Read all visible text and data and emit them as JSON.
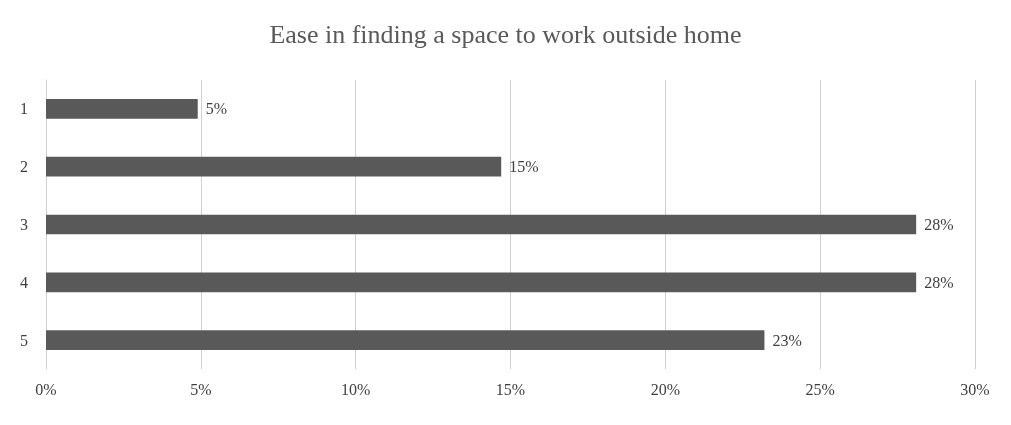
{
  "chart_data": {
    "type": "bar",
    "orientation": "horizontal",
    "title": "Ease in finding a space to work outside home",
    "categories": [
      "1",
      "2",
      "3",
      "4",
      "5"
    ],
    "values": [
      4.9,
      14.7,
      28.1,
      28.1,
      23.2
    ],
    "value_labels": [
      "5%",
      "15%",
      "28%",
      "28%",
      "23%"
    ],
    "color": "#595959",
    "xlim": [
      0,
      30
    ],
    "xticks": [
      {
        "value": 0,
        "label": "0%"
      },
      {
        "value": 5,
        "label": "5%"
      },
      {
        "value": 10,
        "label": "10%"
      },
      {
        "value": 15,
        "label": "15%"
      },
      {
        "value": 20,
        "label": "20%"
      },
      {
        "value": 25,
        "label": "25%"
      },
      {
        "value": 30,
        "label": "30%"
      }
    ],
    "grid": "x"
  }
}
